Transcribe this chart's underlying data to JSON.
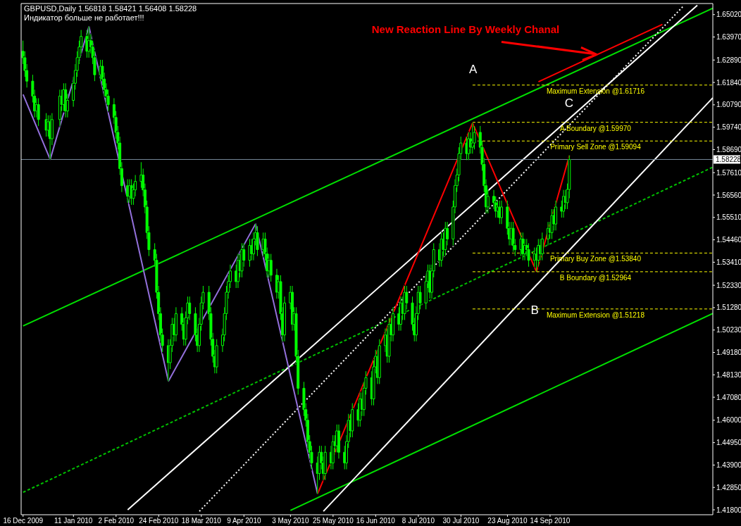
{
  "chart_data": {
    "type": "candlestick",
    "title": "GBPUSD,Daily  1.56818 1.58421 1.56408 1.58228",
    "subtitle": "Индикатор больше не работает!!!",
    "color": "#00ff00",
    "annotations": [
      {
        "text": "New Reaction Line By Weekly Chanal",
        "x": "2010-10-08",
        "y": 1.6315
      },
      "A",
      "C",
      "B"
    ],
    "xlim": [
      "2009-12-15",
      "2010-12-07"
    ],
    "xticks": [
      {
        "value": "2009-12-16",
        "label": "16 Dec 2009"
      },
      {
        "value": "2010-01-11",
        "label": "11 Jan 2010"
      },
      {
        "value": "2010-02-02",
        "label": "2 Feb 2010"
      },
      {
        "value": "2010-02-24",
        "label": "24 Feb 2010"
      },
      {
        "value": "2010-03-18",
        "label": "18 Mar 2010"
      },
      {
        "value": "2010-04-09",
        "label": "9 Apr 2010"
      },
      {
        "value": "2010-05-03",
        "label": "3 May 2010"
      },
      {
        "value": "2010-05-25",
        "label": "25 May 2010"
      },
      {
        "value": "2010-06-16",
        "label": "16 Jun 2010"
      },
      {
        "value": "2010-07-08",
        "label": "8 Jul 2010"
      },
      {
        "value": "2010-07-30",
        "label": "30 Jul 2010"
      },
      {
        "value": "2010-08-23",
        "label": "23 Aug 2010"
      },
      {
        "value": "2010-09-14",
        "label": "14 Sep 2010"
      }
    ],
    "ylim": [
      1.4157,
      1.6554
    ],
    "yticks": [
      {
        "value": 1.418,
        "label": "1.41800"
      },
      {
        "value": 1.4285,
        "label": "1.42850"
      },
      {
        "value": 1.439,
        "label": "1.43900"
      },
      {
        "value": 1.4495,
        "label": "1.44950"
      },
      {
        "value": 1.46,
        "label": "1.46000"
      },
      {
        "value": 1.4708,
        "label": "1.47080"
      },
      {
        "value": 1.4813,
        "label": "1.48130"
      },
      {
        "value": 1.4918,
        "label": "1.49180"
      },
      {
        "value": 1.5023,
        "label": "1.50230"
      },
      {
        "value": 1.5128,
        "label": "1.51280"
      },
      {
        "value": 1.5233,
        "label": "1.52330"
      },
      {
        "value": 1.5341,
        "label": "1.53410"
      },
      {
        "value": 1.5446,
        "label": "1.54460"
      },
      {
        "value": 1.5551,
        "label": "1.55510"
      },
      {
        "value": 1.5656,
        "label": "1.56560"
      },
      {
        "value": 1.5761,
        "label": "1.57610"
      },
      {
        "value": 1.5869,
        "label": "1.58690"
      },
      {
        "value": 1.5974,
        "label": "1.59740"
      },
      {
        "value": 1.6079,
        "label": "1.60790"
      },
      {
        "value": 1.6184,
        "label": "1.61840"
      },
      {
        "value": 1.6289,
        "label": "1.62890"
      },
      {
        "value": 1.6397,
        "label": "1.63970"
      },
      {
        "value": 1.6502,
        "label": "1.65020"
      }
    ],
    "ref_lines": [
      {
        "axis": "y",
        "value": 1.58228,
        "label": "1.58228",
        "color": "#778899",
        "line_style": "solid"
      },
      {
        "axis": "y",
        "value": 1.61716,
        "label": "Maximum Extension @1.61716",
        "color": "#ffff00",
        "line_style": "dashed"
      },
      {
        "axis": "y",
        "value": 1.5997,
        "label": "A Boundary @1.59970",
        "color": "#ffff00",
        "line_style": "dashed"
      },
      {
        "axis": "y",
        "value": 1.59094,
        "label": "Primary Sell Zone @1.59094",
        "color": "#ffff00",
        "line_style": "dashed"
      },
      {
        "axis": "y",
        "value": 1.5384,
        "label": "Primary Buy Zone @1.53840",
        "color": "#ffff00",
        "line_style": "dashed"
      },
      {
        "axis": "y",
        "value": 1.52964,
        "label": "B Boundary @1.52964",
        "color": "#ffff00",
        "line_style": "dashed"
      },
      {
        "axis": "y",
        "value": 1.51218,
        "label": "Maximum Extension @1.51218",
        "color": "#ffff00",
        "line_style": "dashed"
      }
    ],
    "series": [
      {
        "type": "line",
        "color": "#00e000",
        "line_style": "solid",
        "x": [
          "2009-12-16",
          "2010-12-07"
        ],
        "values": [
          1.5042,
          1.6532
        ]
      },
      {
        "type": "line",
        "color": "#00e000",
        "line_style": "solid",
        "x": [
          "2010-05-03",
          "2010-12-07"
        ],
        "values": [
          1.4177,
          1.5101
        ]
      },
      {
        "type": "line",
        "color": "#00c000",
        "line_style": "dashed",
        "x": [
          "2009-12-16",
          "2010-12-07"
        ],
        "values": [
          1.4262,
          1.5787
        ]
      },
      {
        "type": "line",
        "color": "#ffffff",
        "line_style": "solid",
        "x": [
          "2010-02-08",
          "2010-11-29"
        ],
        "values": [
          1.418,
          1.6546
        ]
      },
      {
        "type": "line",
        "color": "#ffffff",
        "line_style": "solid",
        "x": [
          "2010-05-20",
          "2010-12-07"
        ],
        "values": [
          1.4173,
          1.6112
        ]
      },
      {
        "type": "line",
        "color": "#ffffff",
        "line_style": "dotted",
        "x": [
          "2010-03-17",
          "2010-11-22"
        ],
        "values": [
          1.4173,
          1.6544
        ]
      },
      {
        "type": "line",
        "color": "#9370db",
        "line_style": "solid",
        "x": [
          "2009-12-16",
          "2009-12-30",
          "2010-01-19",
          "2010-03-01",
          "2010-04-15",
          "2010-05-17"
        ],
        "values": [
          1.6128,
          1.5823,
          1.6446,
          1.4783,
          1.5521,
          1.4255
        ]
      },
      {
        "type": "line",
        "color": "#ff0000",
        "line_style": "solid",
        "x": [
          "2010-05-17",
          "2010-08-05",
          "2010-09-07",
          "2010-09-24"
        ],
        "values": [
          1.4255,
          1.5994,
          1.5296,
          1.5842
        ]
      },
      {
        "type": "line",
        "color": "#ff0000",
        "line_style": "solid",
        "x": [
          "2010-09-08",
          "2010-11-11"
        ],
        "values": [
          1.6187,
          1.6456
        ]
      }
    ],
    "x": [
      "2009-12-16",
      "2009-12-17",
      "2009-12-18",
      "2009-12-21",
      "2009-12-22",
      "2009-12-23",
      "2009-12-24",
      "2009-12-28",
      "2009-12-29",
      "2009-12-30",
      "2009-12-31",
      "2010-01-04",
      "2010-01-05",
      "2010-01-06",
      "2010-01-07",
      "2010-01-08",
      "2010-01-11",
      "2010-01-12",
      "2010-01-13",
      "2010-01-14",
      "2010-01-15",
      "2010-01-18",
      "2010-01-19",
      "2010-01-20",
      "2010-01-21",
      "2010-01-22",
      "2010-01-25",
      "2010-01-26",
      "2010-01-27",
      "2010-01-28",
      "2010-01-29",
      "2010-02-01",
      "2010-02-02",
      "2010-02-03",
      "2010-02-04",
      "2010-02-05",
      "2010-02-08",
      "2010-02-09",
      "2010-02-10",
      "2010-02-11",
      "2010-02-12",
      "2010-02-15",
      "2010-02-16",
      "2010-02-17",
      "2010-02-18",
      "2010-02-19",
      "2010-02-22",
      "2010-02-23",
      "2010-02-24",
      "2010-02-25",
      "2010-02-26",
      "2010-03-01",
      "2010-03-02",
      "2010-03-03",
      "2010-03-04",
      "2010-03-05",
      "2010-03-08",
      "2010-03-09",
      "2010-03-10",
      "2010-03-11",
      "2010-03-12",
      "2010-03-15",
      "2010-03-16",
      "2010-03-17",
      "2010-03-18",
      "2010-03-19",
      "2010-03-22",
      "2010-03-23",
      "2010-03-24",
      "2010-03-25",
      "2010-03-26",
      "2010-03-29",
      "2010-03-30",
      "2010-03-31",
      "2010-04-01",
      "2010-04-02",
      "2010-04-05",
      "2010-04-06",
      "2010-04-07",
      "2010-04-08",
      "2010-04-09",
      "2010-04-12",
      "2010-04-13",
      "2010-04-14",
      "2010-04-15",
      "2010-04-16",
      "2010-04-19",
      "2010-04-20",
      "2010-04-21",
      "2010-04-22",
      "2010-04-23",
      "2010-04-26",
      "2010-04-27",
      "2010-04-28",
      "2010-04-29",
      "2010-04-30",
      "2010-05-03",
      "2010-05-04",
      "2010-05-05",
      "2010-05-06",
      "2010-05-07",
      "2010-05-10",
      "2010-05-11",
      "2010-05-12",
      "2010-05-13",
      "2010-05-14",
      "2010-05-17",
      "2010-05-18",
      "2010-05-19",
      "2010-05-20",
      "2010-05-21",
      "2010-05-24",
      "2010-05-25",
      "2010-05-26",
      "2010-05-27",
      "2010-05-28",
      "2010-05-31",
      "2010-06-01",
      "2010-06-02",
      "2010-06-03",
      "2010-06-04",
      "2010-06-07",
      "2010-06-08",
      "2010-06-09",
      "2010-06-10",
      "2010-06-11",
      "2010-06-14",
      "2010-06-15",
      "2010-06-16",
      "2010-06-17",
      "2010-06-18",
      "2010-06-21",
      "2010-06-22",
      "2010-06-23",
      "2010-06-24",
      "2010-06-25",
      "2010-06-28",
      "2010-06-29",
      "2010-06-30",
      "2010-07-01",
      "2010-07-02",
      "2010-07-05",
      "2010-07-06",
      "2010-07-07",
      "2010-07-08",
      "2010-07-09",
      "2010-07-12",
      "2010-07-13",
      "2010-07-14",
      "2010-07-15",
      "2010-07-16",
      "2010-07-19",
      "2010-07-20",
      "2010-07-21",
      "2010-07-22",
      "2010-07-23",
      "2010-07-26",
      "2010-07-27",
      "2010-07-28",
      "2010-07-29",
      "2010-07-30",
      "2010-08-02",
      "2010-08-03",
      "2010-08-04",
      "2010-08-05",
      "2010-08-06",
      "2010-08-09",
      "2010-08-10",
      "2010-08-11",
      "2010-08-12",
      "2010-08-13",
      "2010-08-16",
      "2010-08-17",
      "2010-08-18",
      "2010-08-19",
      "2010-08-20",
      "2010-08-23",
      "2010-08-24",
      "2010-08-25",
      "2010-08-26",
      "2010-08-27",
      "2010-08-30",
      "2010-08-31",
      "2010-09-01",
      "2010-09-02",
      "2010-09-03",
      "2010-09-06",
      "2010-09-07",
      "2010-09-08",
      "2010-09-09",
      "2010-09-10",
      "2010-09-13",
      "2010-09-14",
      "2010-09-15",
      "2010-09-16",
      "2010-09-17",
      "2010-09-20",
      "2010-09-21",
      "2010-09-22",
      "2010-09-23",
      "2010-09-24"
    ],
    "ohlc": [
      [
        1.633,
        1.638,
        1.627,
        1.63
      ],
      [
        1.63,
        1.633,
        1.621,
        1.624
      ],
      [
        1.624,
        1.627,
        1.616,
        1.619
      ],
      [
        1.619,
        1.622,
        1.609,
        1.612
      ],
      [
        1.612,
        1.615,
        1.602,
        1.605
      ],
      [
        1.605,
        1.611,
        1.602,
        1.608
      ],
      [
        1.608,
        1.611,
        1.598,
        1.601
      ],
      [
        1.601,
        1.604,
        1.593,
        1.596
      ],
      [
        1.596,
        1.603,
        1.593,
        1.6
      ],
      [
        1.6,
        1.603,
        1.5823,
        1.592
      ],
      [
        1.592,
        1.604,
        1.589,
        1.601
      ],
      [
        1.601,
        1.615,
        1.598,
        1.612
      ],
      [
        1.612,
        1.615,
        1.605,
        1.608
      ],
      [
        1.608,
        1.618,
        1.605,
        1.615
      ],
      [
        1.615,
        1.618,
        1.602,
        1.605
      ],
      [
        1.605,
        1.613,
        1.602,
        1.61
      ],
      [
        1.61,
        1.621,
        1.607,
        1.618
      ],
      [
        1.618,
        1.627,
        1.615,
        1.624
      ],
      [
        1.624,
        1.633,
        1.621,
        1.63
      ],
      [
        1.63,
        1.638,
        1.627,
        1.635
      ],
      [
        1.635,
        1.643,
        1.632,
        1.64
      ],
      [
        1.64,
        1.643,
        1.63,
        1.633
      ],
      [
        1.633,
        1.6446,
        1.63,
        1.638
      ],
      [
        1.638,
        1.641,
        1.632,
        1.635
      ],
      [
        1.635,
        1.638,
        1.627,
        1.63
      ],
      [
        1.63,
        1.633,
        1.619,
        1.622
      ],
      [
        1.622,
        1.629,
        1.619,
        1.626
      ],
      [
        1.626,
        1.629,
        1.617,
        1.62
      ],
      [
        1.62,
        1.623,
        1.612,
        1.615
      ],
      [
        1.615,
        1.618,
        1.609,
        1.612
      ],
      [
        1.612,
        1.615,
        1.605,
        1.608
      ],
      [
        1.608,
        1.611,
        1.599,
        1.602
      ],
      [
        1.602,
        1.605,
        1.592,
        1.595
      ],
      [
        1.595,
        1.598,
        1.587,
        1.59
      ],
      [
        1.59,
        1.593,
        1.575,
        1.578
      ],
      [
        1.578,
        1.581,
        1.567,
        1.57
      ],
      [
        1.57,
        1.573,
        1.562,
        1.565
      ],
      [
        1.565,
        1.573,
        1.562,
        1.57
      ],
      [
        1.57,
        1.573,
        1.561,
        1.564
      ],
      [
        1.564,
        1.571,
        1.561,
        1.568
      ],
      [
        1.568,
        1.575,
        1.565,
        1.572
      ],
      [
        1.572,
        1.581,
        1.569,
        1.575
      ],
      [
        1.575,
        1.578,
        1.565,
        1.568
      ],
      [
        1.568,
        1.571,
        1.557,
        1.56
      ],
      [
        1.56,
        1.563,
        1.545,
        1.548
      ],
      [
        1.548,
        1.551,
        1.537,
        1.54
      ],
      [
        1.54,
        1.543,
        1.532,
        1.535
      ],
      [
        1.535,
        1.538,
        1.517,
        1.52
      ],
      [
        1.52,
        1.523,
        1.507,
        1.51
      ],
      [
        1.51,
        1.513,
        1.497,
        1.5
      ],
      [
        1.5,
        1.503,
        1.492,
        1.495
      ],
      [
        1.495,
        1.498,
        1.4783,
        1.487
      ],
      [
        1.487,
        1.498,
        1.484,
        1.495
      ],
      [
        1.495,
        1.508,
        1.492,
        1.505
      ],
      [
        1.505,
        1.508,
        1.497,
        1.5
      ],
      [
        1.5,
        1.513,
        1.497,
        1.51
      ],
      [
        1.51,
        1.513,
        1.502,
        1.505
      ],
      [
        1.505,
        1.508,
        1.495,
        1.498
      ],
      [
        1.498,
        1.511,
        1.495,
        1.508
      ],
      [
        1.508,
        1.518,
        1.505,
        1.515
      ],
      [
        1.515,
        1.518,
        1.507,
        1.51
      ],
      [
        1.51,
        1.513,
        1.497,
        1.5
      ],
      [
        1.5,
        1.503,
        1.492,
        1.495
      ],
      [
        1.495,
        1.508,
        1.492,
        1.505
      ],
      [
        1.505,
        1.518,
        1.502,
        1.515
      ],
      [
        1.515,
        1.523,
        1.512,
        1.52
      ],
      [
        1.52,
        1.523,
        1.507,
        1.51
      ],
      [
        1.51,
        1.513,
        1.495,
        1.498
      ],
      [
        1.498,
        1.501,
        1.487,
        1.49
      ],
      [
        1.49,
        1.493,
        1.482,
        1.485
      ],
      [
        1.485,
        1.498,
        1.482,
        1.495
      ],
      [
        1.495,
        1.503,
        1.492,
        1.5
      ],
      [
        1.5,
        1.513,
        1.497,
        1.51
      ],
      [
        1.51,
        1.523,
        1.507,
        1.52
      ],
      [
        1.52,
        1.528,
        1.517,
        1.525
      ],
      [
        1.525,
        1.533,
        1.522,
        1.53
      ],
      [
        1.53,
        1.533,
        1.522,
        1.525
      ],
      [
        1.525,
        1.538,
        1.522,
        1.535
      ],
      [
        1.535,
        1.538,
        1.527,
        1.53
      ],
      [
        1.53,
        1.543,
        1.527,
        1.54
      ],
      [
        1.54,
        1.543,
        1.532,
        1.535
      ],
      [
        1.535,
        1.545,
        1.532,
        1.542
      ],
      [
        1.542,
        1.545,
        1.535,
        1.538
      ],
      [
        1.538,
        1.548,
        1.535,
        1.545
      ],
      [
        1.545,
        1.5521,
        1.542,
        1.548
      ],
      [
        1.548,
        1.551,
        1.537,
        1.54
      ],
      [
        1.54,
        1.548,
        1.537,
        1.545
      ],
      [
        1.545,
        1.548,
        1.535,
        1.538
      ],
      [
        1.538,
        1.541,
        1.527,
        1.53
      ],
      [
        1.53,
        1.538,
        1.527,
        1.535
      ],
      [
        1.535,
        1.538,
        1.525,
        1.528
      ],
      [
        1.528,
        1.531,
        1.517,
        1.52
      ],
      [
        1.52,
        1.528,
        1.517,
        1.525
      ],
      [
        1.525,
        1.528,
        1.507,
        1.51
      ],
      [
        1.51,
        1.513,
        1.497,
        1.5
      ],
      [
        1.5,
        1.518,
        1.497,
        1.515
      ],
      [
        1.515,
        1.523,
        1.512,
        1.52
      ],
      [
        1.52,
        1.523,
        1.502,
        1.505
      ],
      [
        1.505,
        1.513,
        1.502,
        1.51
      ],
      [
        1.51,
        1.513,
        1.487,
        1.49
      ],
      [
        1.49,
        1.493,
        1.472,
        1.475
      ],
      [
        1.475,
        1.478,
        1.462,
        1.465
      ],
      [
        1.465,
        1.468,
        1.457,
        1.46
      ],
      [
        1.46,
        1.463,
        1.447,
        1.45
      ],
      [
        1.45,
        1.453,
        1.442,
        1.445
      ],
      [
        1.445,
        1.448,
        1.437,
        1.44
      ],
      [
        1.44,
        1.443,
        1.4255,
        1.435
      ],
      [
        1.435,
        1.448,
        1.432,
        1.445
      ],
      [
        1.445,
        1.448,
        1.437,
        1.44
      ],
      [
        1.44,
        1.443,
        1.432,
        1.435
      ],
      [
        1.435,
        1.448,
        1.432,
        1.445
      ],
      [
        1.445,
        1.448,
        1.437,
        1.44
      ],
      [
        1.44,
        1.453,
        1.437,
        1.45
      ],
      [
        1.45,
        1.453,
        1.445,
        1.448
      ],
      [
        1.448,
        1.458,
        1.445,
        1.455
      ],
      [
        1.455,
        1.458,
        1.442,
        1.445
      ],
      [
        1.445,
        1.448,
        1.437,
        1.44
      ],
      [
        1.44,
        1.453,
        1.437,
        1.45
      ],
      [
        1.45,
        1.463,
        1.447,
        1.46
      ],
      [
        1.46,
        1.463,
        1.452,
        1.455
      ],
      [
        1.455,
        1.468,
        1.452,
        1.465
      ],
      [
        1.465,
        1.468,
        1.457,
        1.46
      ],
      [
        1.46,
        1.473,
        1.457,
        1.47
      ],
      [
        1.47,
        1.473,
        1.462,
        1.465
      ],
      [
        1.465,
        1.478,
        1.462,
        1.475
      ],
      [
        1.475,
        1.483,
        1.472,
        1.48
      ],
      [
        1.48,
        1.483,
        1.467,
        1.47
      ],
      [
        1.47,
        1.488,
        1.467,
        1.485
      ],
      [
        1.485,
        1.493,
        1.482,
        1.49
      ],
      [
        1.49,
        1.493,
        1.477,
        1.48
      ],
      [
        1.48,
        1.498,
        1.477,
        1.495
      ],
      [
        1.495,
        1.503,
        1.492,
        1.5
      ],
      [
        1.5,
        1.503,
        1.487,
        1.49
      ],
      [
        1.49,
        1.508,
        1.487,
        1.505
      ],
      [
        1.505,
        1.508,
        1.497,
        1.5
      ],
      [
        1.5,
        1.513,
        1.497,
        1.51
      ],
      [
        1.51,
        1.513,
        1.502,
        1.505
      ],
      [
        1.505,
        1.518,
        1.502,
        1.515
      ],
      [
        1.515,
        1.518,
        1.507,
        1.51
      ],
      [
        1.51,
        1.523,
        1.507,
        1.52
      ],
      [
        1.52,
        1.523,
        1.512,
        1.515
      ],
      [
        1.515,
        1.518,
        1.502,
        1.505
      ],
      [
        1.505,
        1.508,
        1.497,
        1.5
      ],
      [
        1.5,
        1.513,
        1.497,
        1.51
      ],
      [
        1.51,
        1.523,
        1.507,
        1.52
      ],
      [
        1.52,
        1.523,
        1.512,
        1.515
      ],
      [
        1.515,
        1.528,
        1.512,
        1.525
      ],
      [
        1.525,
        1.533,
        1.522,
        1.53
      ],
      [
        1.53,
        1.533,
        1.517,
        1.52
      ],
      [
        1.52,
        1.533,
        1.517,
        1.53
      ],
      [
        1.53,
        1.543,
        1.527,
        1.54
      ],
      [
        1.54,
        1.543,
        1.532,
        1.535
      ],
      [
        1.535,
        1.548,
        1.532,
        1.545
      ],
      [
        1.545,
        1.548,
        1.537,
        1.54
      ],
      [
        1.54,
        1.553,
        1.537,
        1.55
      ],
      [
        1.55,
        1.553,
        1.542,
        1.545
      ],
      [
        1.545,
        1.563,
        1.542,
        1.56
      ],
      [
        1.56,
        1.573,
        1.557,
        1.57
      ],
      [
        1.57,
        1.578,
        1.567,
        1.575
      ],
      [
        1.575,
        1.588,
        1.572,
        1.585
      ],
      [
        1.585,
        1.593,
        1.582,
        1.59
      ],
      [
        1.59,
        1.593,
        1.582,
        1.585
      ],
      [
        1.585,
        1.595,
        1.582,
        1.592
      ],
      [
        1.592,
        1.595,
        1.585,
        1.588
      ],
      [
        1.588,
        1.5994,
        1.585,
        1.59
      ],
      [
        1.59,
        1.598,
        1.587,
        1.595
      ],
      [
        1.595,
        1.598,
        1.585,
        1.588
      ],
      [
        1.588,
        1.591,
        1.577,
        1.58
      ],
      [
        1.58,
        1.583,
        1.567,
        1.57
      ],
      [
        1.57,
        1.573,
        1.557,
        1.56
      ],
      [
        1.56,
        1.568,
        1.557,
        1.565
      ],
      [
        1.565,
        1.568,
        1.559,
        1.562
      ],
      [
        1.562,
        1.565,
        1.555,
        1.558
      ],
      [
        1.558,
        1.563,
        1.555,
        1.56
      ],
      [
        1.56,
        1.563,
        1.552,
        1.555
      ],
      [
        1.555,
        1.563,
        1.552,
        1.56
      ],
      [
        1.56,
        1.563,
        1.547,
        1.55
      ],
      [
        1.55,
        1.553,
        1.542,
        1.545
      ],
      [
        1.545,
        1.553,
        1.542,
        1.55
      ],
      [
        1.55,
        1.553,
        1.539,
        1.542
      ],
      [
        1.542,
        1.545,
        1.537,
        1.54
      ],
      [
        1.54,
        1.548,
        1.537,
        1.545
      ],
      [
        1.545,
        1.548,
        1.535,
        1.538
      ],
      [
        1.538,
        1.545,
        1.535,
        1.542
      ],
      [
        1.542,
        1.545,
        1.537,
        1.54
      ],
      [
        1.54,
        1.543,
        1.532,
        1.535
      ],
      [
        1.535,
        1.541,
        1.532,
        1.538
      ],
      [
        1.538,
        1.541,
        1.5296,
        1.535
      ],
      [
        1.535,
        1.545,
        1.532,
        1.542
      ],
      [
        1.542,
        1.545,
        1.535,
        1.538
      ],
      [
        1.538,
        1.548,
        1.535,
        1.545
      ],
      [
        1.545,
        1.553,
        1.542,
        1.55
      ],
      [
        1.55,
        1.553,
        1.545,
        1.548
      ],
      [
        1.548,
        1.559,
        1.545,
        1.556
      ],
      [
        1.556,
        1.559,
        1.549,
        1.552
      ],
      [
        1.552,
        1.563,
        1.549,
        1.56
      ],
      [
        1.56,
        1.563,
        1.555,
        1.558
      ],
      [
        1.558,
        1.568,
        1.555,
        1.565
      ],
      [
        1.565,
        1.568,
        1.559,
        1.562
      ],
      [
        1.562,
        1.571,
        1.559,
        1.5682
      ],
      [
        1.56818,
        1.58421,
        1.56408,
        1.58228
      ]
    ]
  }
}
